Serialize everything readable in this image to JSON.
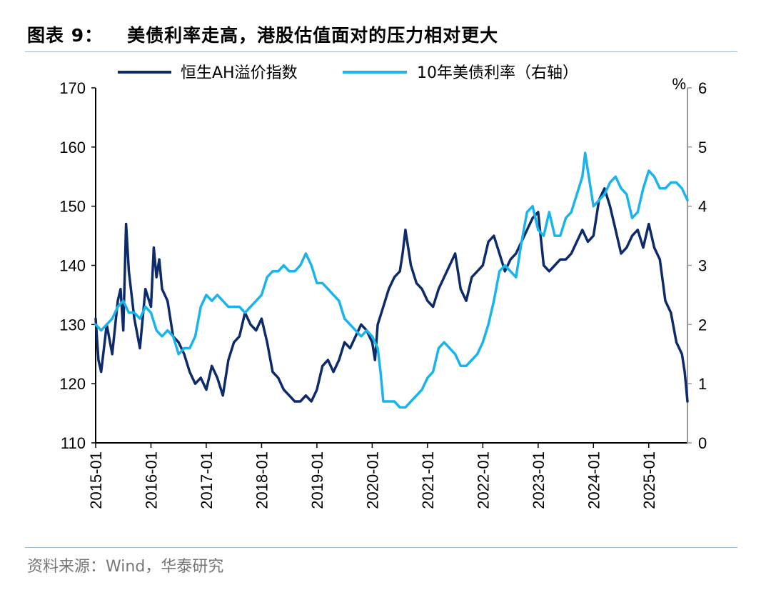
{
  "header": {
    "figure_label": "图表 9：",
    "title": "美债利率走高，港股估值面对的压力相对更大"
  },
  "source": "资料来源：Wind，华泰研究",
  "chart_data": {
    "type": "line",
    "title": "美债利率走高，港股估值面对的压力相对更大",
    "x_tick_labels": [
      "2015-01",
      "2016-01",
      "2017-01",
      "2018-01",
      "2019-01",
      "2020-01",
      "2021-01",
      "2022-01",
      "2023-01",
      "2024-01",
      "2025-01"
    ],
    "x_range": [
      2015.0,
      2025.7
    ],
    "left_axis": {
      "label": "",
      "ylim": [
        110,
        170
      ],
      "ticks": [
        110,
        120,
        130,
        140,
        150,
        160,
        170
      ]
    },
    "right_axis": {
      "label": "%",
      "ylim": [
        0,
        6
      ],
      "ticks": [
        0,
        1,
        2,
        3,
        4,
        5,
        6
      ]
    },
    "legend_position": "top-center",
    "series": [
      {
        "name": "恒生AH溢价指数",
        "axis": "left",
        "color": "#0d2a6b",
        "x": [
          2015.0,
          2015.05,
          2015.1,
          2015.2,
          2015.3,
          2015.4,
          2015.45,
          2015.5,
          2015.55,
          2015.6,
          2015.7,
          2015.8,
          2015.9,
          2016.0,
          2016.05,
          2016.1,
          2016.15,
          2016.2,
          2016.3,
          2016.4,
          2016.5,
          2016.6,
          2016.7,
          2016.8,
          2016.9,
          2017.0,
          2017.1,
          2017.15,
          2017.2,
          2017.3,
          2017.4,
          2017.5,
          2017.6,
          2017.7,
          2017.8,
          2017.9,
          2018.0,
          2018.05,
          2018.1,
          2018.2,
          2018.3,
          2018.4,
          2018.5,
          2018.6,
          2018.7,
          2018.8,
          2018.9,
          2019.0,
          2019.1,
          2019.2,
          2019.3,
          2019.4,
          2019.5,
          2019.6,
          2019.7,
          2019.8,
          2019.9,
          2020.0,
          2020.05,
          2020.1,
          2020.2,
          2020.3,
          2020.4,
          2020.5,
          2020.55,
          2020.6,
          2020.7,
          2020.8,
          2020.9,
          2021.0,
          2021.1,
          2021.2,
          2021.3,
          2021.4,
          2021.5,
          2021.6,
          2021.7,
          2021.8,
          2021.9,
          2022.0,
          2022.1,
          2022.2,
          2022.3,
          2022.4,
          2022.5,
          2022.6,
          2022.7,
          2022.8,
          2022.9,
          2023.0,
          2023.1,
          2023.2,
          2023.3,
          2023.4,
          2023.5,
          2023.6,
          2023.7,
          2023.8,
          2023.9,
          2024.0,
          2024.05,
          2024.1,
          2024.2,
          2024.3,
          2024.4,
          2024.5,
          2024.6,
          2024.7,
          2024.8,
          2024.9,
          2025.0,
          2025.1,
          2025.2,
          2025.3,
          2025.4,
          2025.5,
          2025.6,
          2025.65,
          2025.7
        ],
        "values": [
          131,
          124,
          122,
          130,
          125,
          134,
          136,
          129,
          147,
          139,
          131,
          126,
          136,
          133,
          143,
          138,
          141,
          136,
          134,
          128,
          127,
          125,
          122,
          120,
          121,
          119,
          123,
          122,
          121,
          118,
          124,
          127,
          128,
          132,
          130,
          129,
          131,
          129,
          127,
          122,
          121,
          119,
          118,
          117,
          117,
          118,
          117,
          119,
          123,
          124,
          122,
          124,
          127,
          126,
          128,
          130,
          129,
          127,
          124,
          130,
          133,
          136,
          138,
          139,
          142,
          146,
          140,
          137,
          136,
          134,
          133,
          136,
          138,
          140,
          142,
          136,
          134,
          138,
          139,
          140,
          144,
          145,
          142,
          139,
          141,
          142,
          144,
          146,
          148,
          149,
          140,
          139,
          140,
          141,
          141,
          142,
          144,
          146,
          144,
          145,
          148,
          151,
          153,
          150,
          146,
          142,
          143,
          145,
          146,
          143,
          147,
          143,
          141,
          134,
          132,
          127,
          125,
          122,
          117
        ],
        "values_note": "HK AH premium index level (left axis), trend approximated from the plot"
      },
      {
        "name": "10年美债利率（右轴）",
        "axis": "right",
        "color": "#19b4ec",
        "x": [
          2015.0,
          2015.1,
          2015.2,
          2015.3,
          2015.4,
          2015.5,
          2015.6,
          2015.7,
          2015.8,
          2015.9,
          2016.0,
          2016.1,
          2016.2,
          2016.3,
          2016.4,
          2016.5,
          2016.6,
          2016.7,
          2016.8,
          2016.9,
          2017.0,
          2017.1,
          2017.2,
          2017.3,
          2017.4,
          2017.5,
          2017.6,
          2017.7,
          2017.8,
          2017.9,
          2018.0,
          2018.1,
          2018.2,
          2018.3,
          2018.4,
          2018.5,
          2018.6,
          2018.7,
          2018.8,
          2018.9,
          2019.0,
          2019.1,
          2019.2,
          2019.3,
          2019.4,
          2019.5,
          2019.6,
          2019.7,
          2019.8,
          2019.9,
          2020.0,
          2020.1,
          2020.15,
          2020.2,
          2020.3,
          2020.4,
          2020.5,
          2020.6,
          2020.7,
          2020.8,
          2020.9,
          2021.0,
          2021.1,
          2021.2,
          2021.3,
          2021.4,
          2021.5,
          2021.6,
          2021.7,
          2021.8,
          2021.9,
          2022.0,
          2022.1,
          2022.2,
          2022.3,
          2022.4,
          2022.5,
          2022.6,
          2022.7,
          2022.8,
          2022.9,
          2023.0,
          2023.1,
          2023.2,
          2023.3,
          2023.4,
          2023.5,
          2023.6,
          2023.7,
          2023.8,
          2023.85,
          2023.9,
          2024.0,
          2024.1,
          2024.2,
          2024.3,
          2024.4,
          2024.5,
          2024.6,
          2024.7,
          2024.8,
          2024.9,
          2025.0,
          2025.1,
          2025.2,
          2025.3,
          2025.4,
          2025.5,
          2025.6,
          2025.7
        ],
        "values": [
          2.0,
          1.9,
          2.0,
          2.1,
          2.3,
          2.4,
          2.2,
          2.2,
          2.1,
          2.3,
          2.2,
          1.9,
          1.8,
          1.9,
          1.8,
          1.5,
          1.6,
          1.6,
          1.8,
          2.3,
          2.5,
          2.4,
          2.5,
          2.4,
          2.3,
          2.3,
          2.3,
          2.2,
          2.3,
          2.4,
          2.5,
          2.8,
          2.9,
          2.9,
          3.0,
          2.9,
          2.9,
          3.0,
          3.2,
          3.0,
          2.7,
          2.7,
          2.6,
          2.5,
          2.4,
          2.1,
          2.0,
          1.9,
          1.8,
          1.9,
          1.8,
          1.6,
          1.2,
          0.7,
          0.7,
          0.7,
          0.6,
          0.6,
          0.7,
          0.8,
          0.9,
          1.1,
          1.2,
          1.6,
          1.7,
          1.6,
          1.5,
          1.3,
          1.3,
          1.4,
          1.5,
          1.7,
          2.0,
          2.4,
          2.9,
          3.0,
          2.9,
          2.8,
          3.4,
          3.9,
          4.0,
          3.6,
          3.5,
          3.9,
          3.5,
          3.5,
          3.8,
          3.9,
          4.2,
          4.5,
          4.9,
          4.6,
          4.0,
          4.1,
          4.2,
          4.4,
          4.5,
          4.3,
          4.2,
          3.8,
          3.9,
          4.3,
          4.6,
          4.5,
          4.3,
          4.3,
          4.4,
          4.4,
          4.3,
          4.1
        ],
        "values_note": "10Y UST yield in % (right axis), trend approximated from the plot"
      }
    ]
  }
}
